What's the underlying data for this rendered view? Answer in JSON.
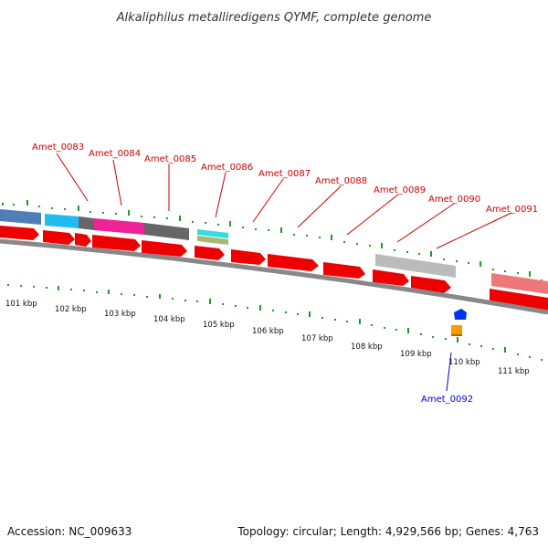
{
  "title": "Alkaliphilus metalliredigens QYMF, complete genome",
  "accession": "Accession: NC_009633",
  "summary": "Topology: circular; Length: 4,929,566 bp; Genes: 4,763",
  "colors": {
    "gene_red": "#ee0000",
    "label_red": "#cc0000",
    "label_blue": "#0000cc",
    "tick_green": "#229922",
    "backbone": "#888888"
  },
  "kbp_ticks": [
    {
      "label": "101 kbp"
    },
    {
      "label": "102 kbp"
    },
    {
      "label": "103 kbp"
    },
    {
      "label": "104 kbp"
    },
    {
      "label": "105 kbp"
    },
    {
      "label": "106 kbp"
    },
    {
      "label": "107 kbp"
    },
    {
      "label": "108 kbp"
    },
    {
      "label": "109 kbp"
    },
    {
      "label": "110 kbp"
    },
    {
      "label": "111 kbp"
    }
  ],
  "gene_labels": [
    {
      "name": "Amet_0083"
    },
    {
      "name": "Amet_0084"
    },
    {
      "name": "Amet_0085"
    },
    {
      "name": "Amet_0086"
    },
    {
      "name": "Amet_0087"
    },
    {
      "name": "Amet_0088"
    },
    {
      "name": "Amet_0089"
    },
    {
      "name": "Amet_0090"
    },
    {
      "name": "Amet_0091"
    },
    {
      "name": "Amet_0092"
    }
  ]
}
